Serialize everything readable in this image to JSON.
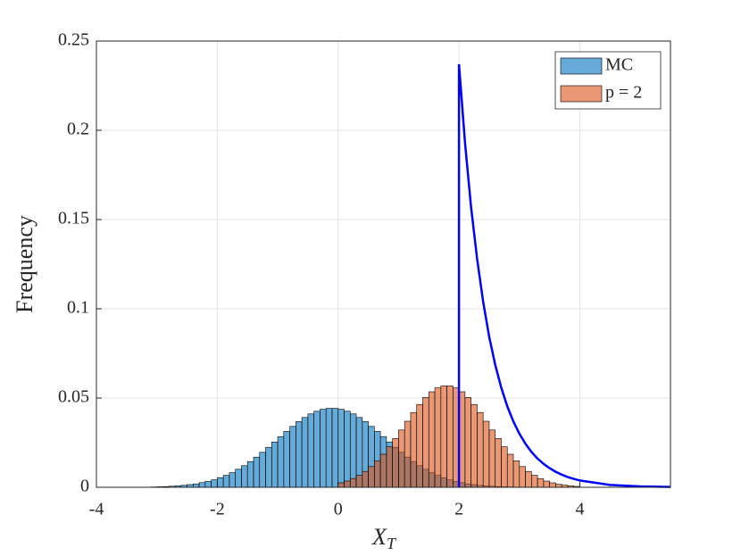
{
  "chart_data": {
    "type": "histogram",
    "xlabel": {
      "main": "X",
      "sub": "T"
    },
    "ylabel": "Frequency",
    "xlim": [
      -4,
      5.5
    ],
    "ylim": [
      0,
      0.25
    ],
    "xticks": [
      -4,
      -2,
      0,
      2,
      4
    ],
    "yticks": [
      0,
      0.05,
      0.1,
      0.15,
      0.2,
      0.25
    ],
    "grid": true,
    "legend": "northeast",
    "series": [
      {
        "name": "MC",
        "color": "#0072BD",
        "bins": [
          -3.5,
          -3.4,
          -3.3,
          -3.2,
          -3.1,
          -3.0,
          -2.9,
          -2.8,
          -2.7,
          -2.6,
          -2.5,
          -2.4,
          -2.3,
          -2.2,
          -2.1,
          -2.0,
          -1.9,
          -1.8,
          -1.7,
          -1.6,
          -1.5,
          -1.4,
          -1.3,
          -1.2,
          -1.1,
          -1.0,
          -0.9,
          -0.8,
          -0.7,
          -0.6,
          -0.5,
          -0.4,
          -0.3,
          -0.2,
          -0.1,
          0.0,
          0.1,
          0.2,
          0.3,
          0.4,
          0.5,
          0.6,
          0.7,
          0.8,
          0.9,
          1.0,
          1.1,
          1.2,
          1.3,
          1.4,
          1.5,
          1.6,
          1.7,
          1.8,
          1.9,
          2.0,
          2.1,
          2.2,
          2.3,
          2.4,
          2.5,
          2.6,
          2.7,
          2.8,
          2.9,
          3.0,
          3.1,
          3.2,
          3.3
        ],
        "values": [
          0.0,
          0.0001,
          0.0001,
          0.0001,
          0.0002,
          0.0003,
          0.0004,
          0.0006,
          0.0008,
          0.0011,
          0.0015,
          0.0019,
          0.0026,
          0.0033,
          0.0042,
          0.0054,
          0.0067,
          0.0082,
          0.0101,
          0.0121,
          0.0144,
          0.0169,
          0.0196,
          0.0224,
          0.0254,
          0.0284,
          0.0313,
          0.0341,
          0.0368,
          0.0391,
          0.0411,
          0.0426,
          0.0437,
          0.0442,
          0.0442,
          0.0437,
          0.0426,
          0.0411,
          0.0391,
          0.0368,
          0.0341,
          0.0313,
          0.0284,
          0.0254,
          0.0224,
          0.0196,
          0.0169,
          0.0144,
          0.0121,
          0.0101,
          0.0082,
          0.0067,
          0.0054,
          0.0042,
          0.0033,
          0.0026,
          0.0019,
          0.0015,
          0.0011,
          0.0008,
          0.0006,
          0.0004,
          0.0003,
          0.0002,
          0.0001,
          0.0001,
          0.0001,
          0.0
        ]
      },
      {
        "name": "p = 2",
        "color": "#D95319",
        "bins": [
          0.0,
          0.1,
          0.2,
          0.3,
          0.4,
          0.5,
          0.6,
          0.7,
          0.8,
          0.9,
          1.0,
          1.1,
          1.2,
          1.3,
          1.4,
          1.5,
          1.6,
          1.7,
          1.8,
          1.9,
          2.0,
          2.1,
          2.2,
          2.3,
          2.4,
          2.5,
          2.6,
          2.7,
          2.8,
          2.9,
          3.0,
          3.1,
          3.2,
          3.3,
          3.4,
          3.5,
          3.6,
          3.7,
          3.8,
          3.9,
          4.0
        ],
        "values": [
          0.0025,
          0.0035,
          0.0049,
          0.0067,
          0.0089,
          0.0116,
          0.0148,
          0.0185,
          0.0227,
          0.0273,
          0.0321,
          0.037,
          0.0419,
          0.0464,
          0.0503,
          0.0535,
          0.0557,
          0.0568,
          0.0568,
          0.0557,
          0.0535,
          0.0503,
          0.0464,
          0.0419,
          0.037,
          0.0321,
          0.0273,
          0.0227,
          0.0185,
          0.0148,
          0.0116,
          0.0089,
          0.0067,
          0.0049,
          0.0035,
          0.0025,
          0.0017,
          0.0012,
          0.0008,
          0.0005
        ]
      }
    ],
    "curve": {
      "color": "#0000FF",
      "x": [
        2.0,
        2.0,
        2.1,
        2.2,
        2.3,
        2.4,
        2.5,
        2.6,
        2.7,
        2.8,
        2.9,
        3.0,
        3.1,
        3.2,
        3.3,
        3.4,
        3.5,
        3.6,
        3.7,
        3.8,
        3.9,
        4.0,
        4.5,
        5.0,
        5.5
      ],
      "values": [
        0,
        0.237,
        0.193,
        0.157,
        0.128,
        0.104,
        0.0843,
        0.0686,
        0.0558,
        0.0453,
        0.0369,
        0.03,
        0.0244,
        0.0198,
        0.0161,
        0.0131,
        0.0107,
        0.0087,
        0.0071,
        0.0057,
        0.0047,
        0.0038,
        0.0013,
        0.0005,
        0.0002
      ]
    }
  }
}
